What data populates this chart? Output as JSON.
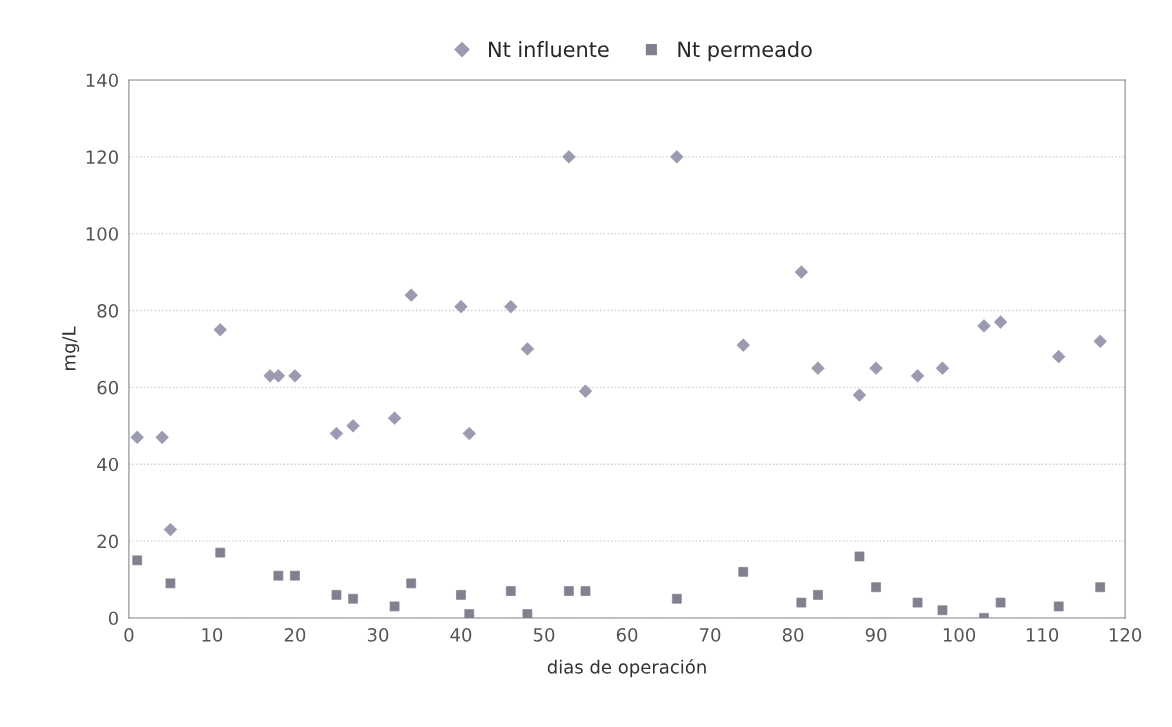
{
  "chart_data": {
    "type": "scatter",
    "xlabel": "dias de operación",
    "ylabel": "mg/L",
    "xlim": [
      0,
      120
    ],
    "xticks": [
      0,
      10,
      20,
      30,
      40,
      50,
      60,
      70,
      80,
      90,
      100,
      110,
      120
    ],
    "ylim": [
      0,
      140
    ],
    "yticks": [
      0,
      20,
      40,
      60,
      80,
      100,
      120,
      140
    ],
    "grid": "y",
    "legend": "top",
    "series": [
      {
        "name": "Nt influente",
        "color": "#9a9ab0",
        "marker": "diamond",
        "x": [
          1,
          4,
          5,
          11,
          17,
          18,
          20,
          25,
          27,
          32,
          34,
          40,
          41,
          46,
          48,
          53,
          55,
          66,
          74,
          81,
          83,
          88,
          90,
          95,
          98,
          103,
          105,
          112,
          117
        ],
        "values": [
          47,
          47,
          23,
          75,
          63,
          63,
          63,
          48,
          50,
          52,
          84,
          81,
          48,
          81,
          70,
          120,
          59,
          120,
          71,
          90,
          65,
          58,
          65,
          63,
          65,
          76,
          77,
          68,
          72
        ]
      },
      {
        "name": "Nt permeado",
        "color": "#80808f",
        "marker": "square",
        "x": [
          1,
          5,
          11,
          18,
          20,
          25,
          27,
          32,
          34,
          40,
          41,
          46,
          48,
          53,
          55,
          66,
          74,
          81,
          83,
          88,
          90,
          95,
          98,
          103,
          105,
          112,
          117
        ],
        "values": [
          15,
          9,
          17,
          11,
          11,
          6,
          5,
          3,
          9,
          6,
          1,
          7,
          1,
          7,
          7,
          5,
          12,
          4,
          6,
          16,
          8,
          4,
          2,
          0,
          4,
          3,
          8
        ]
      }
    ]
  }
}
